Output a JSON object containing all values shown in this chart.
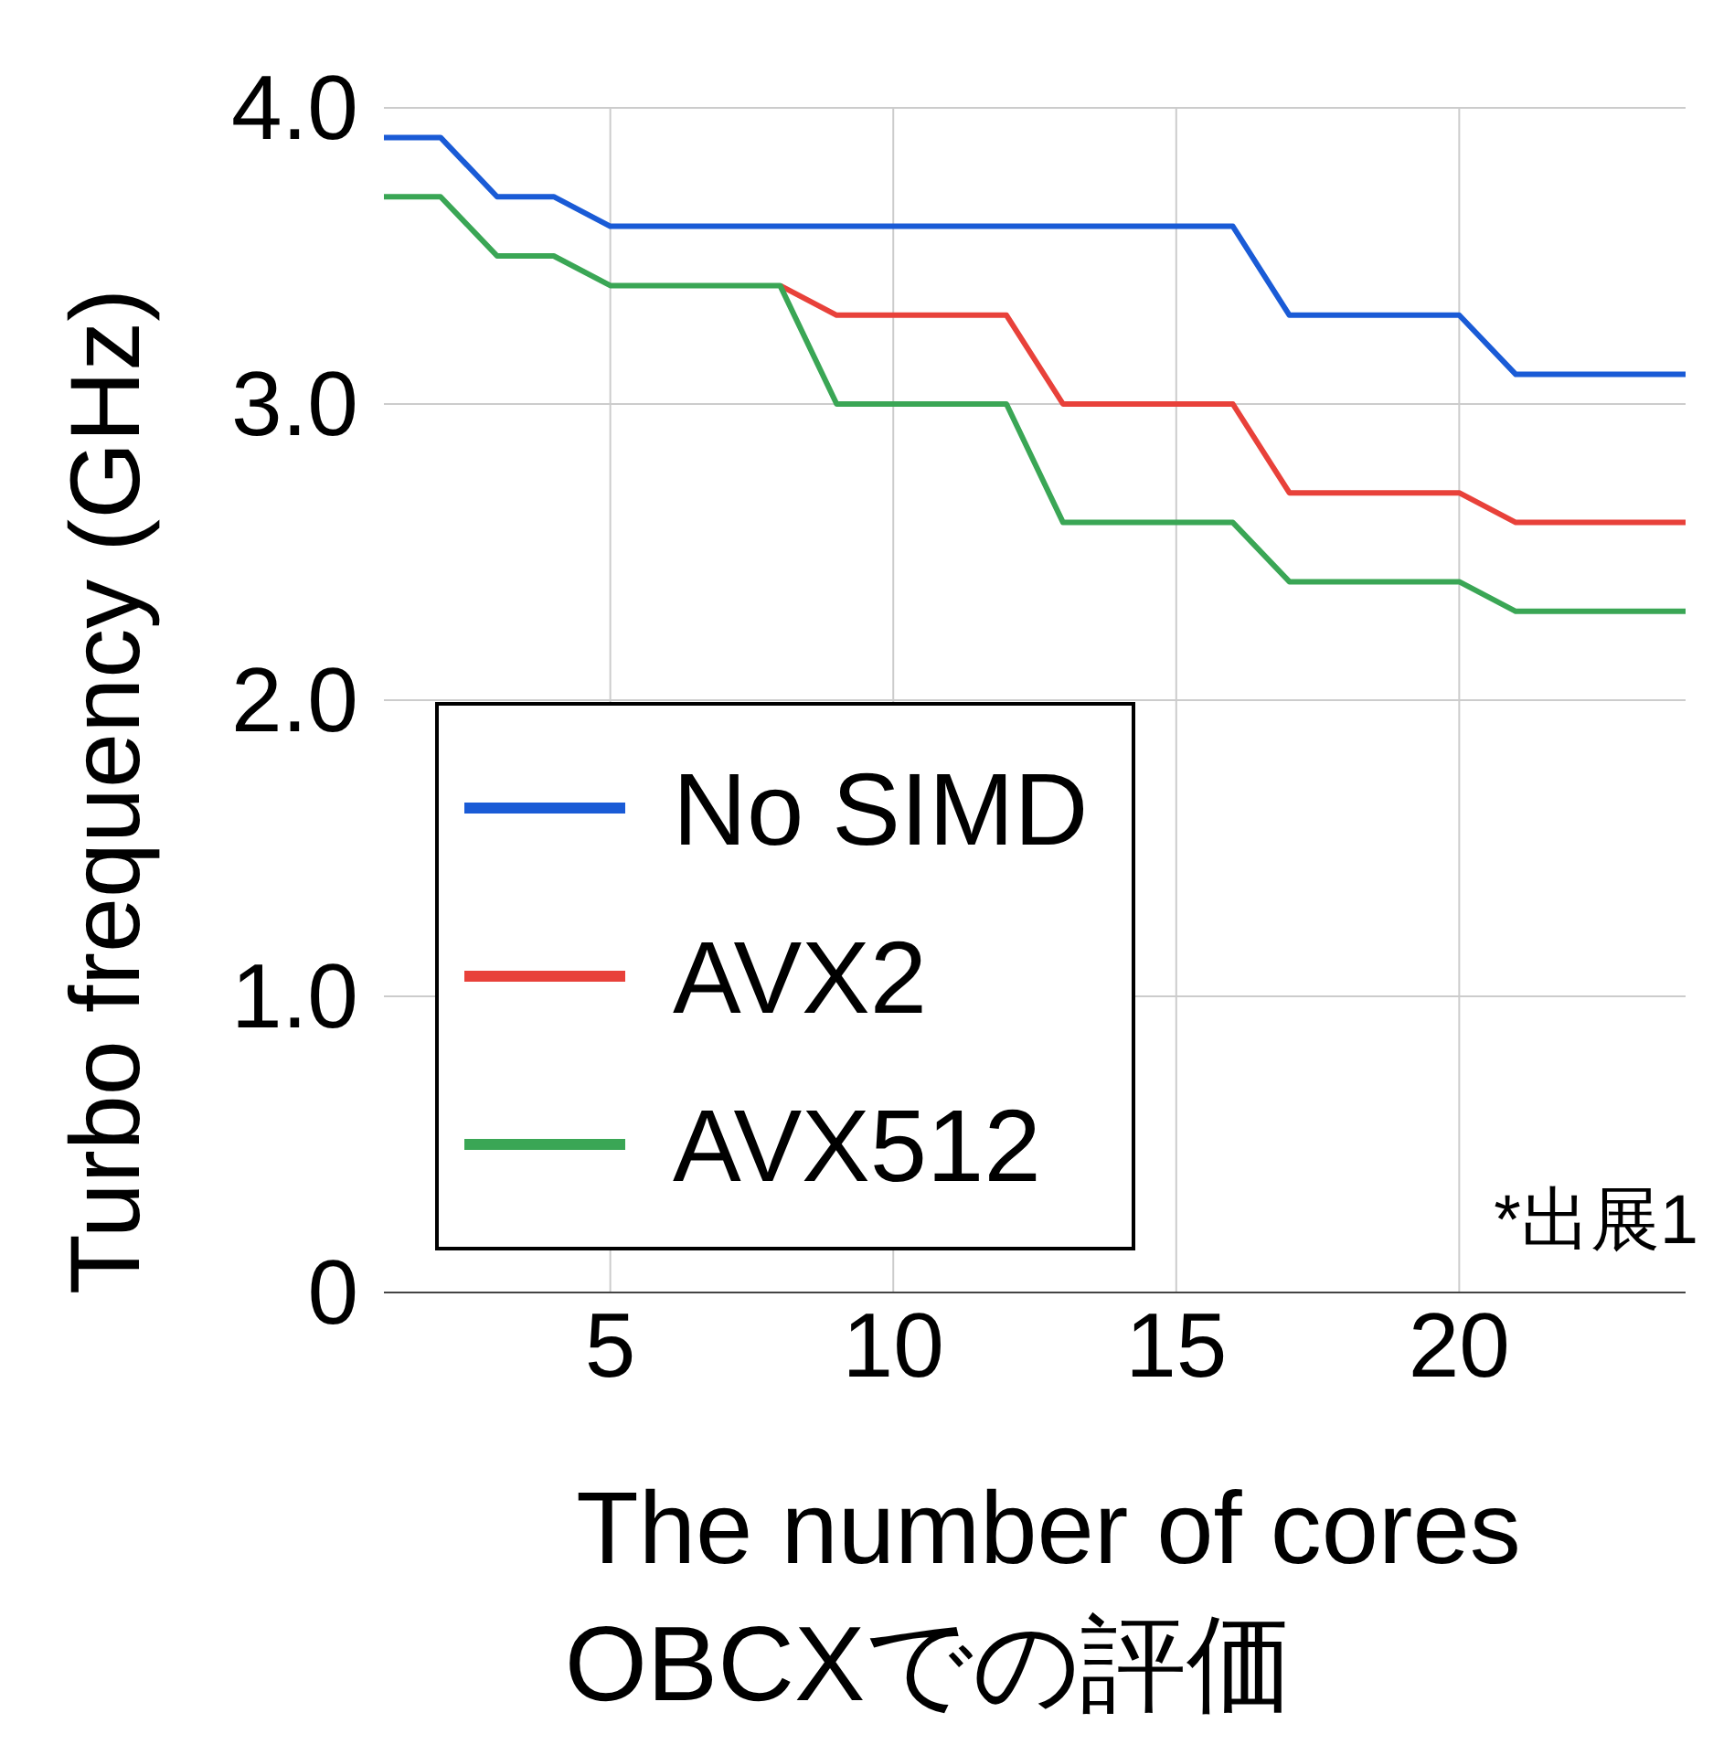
{
  "chart_data": {
    "type": "line",
    "title": "OBCXでの評価",
    "xlabel": "The number of cores",
    "ylabel": "Turbo frequency (GHz)",
    "x": [
      1,
      2,
      3,
      4,
      5,
      6,
      7,
      8,
      9,
      10,
      11,
      12,
      13,
      14,
      15,
      16,
      17,
      18,
      19,
      20,
      21,
      22,
      23,
      24
    ],
    "series": [
      {
        "name": "No SIMD",
        "color": "#1a5bd6",
        "values": [
          3.9,
          3.9,
          3.7,
          3.7,
          3.6,
          3.6,
          3.6,
          3.6,
          3.6,
          3.6,
          3.6,
          3.6,
          3.6,
          3.6,
          3.6,
          3.6,
          3.3,
          3.3,
          3.3,
          3.3,
          3.1,
          3.1,
          3.1,
          3.1
        ]
      },
      {
        "name": "AVX2",
        "color": "#e8413a",
        "values": [
          null,
          null,
          null,
          null,
          null,
          null,
          null,
          3.4,
          3.3,
          3.3,
          3.3,
          3.3,
          3.0,
          3.0,
          3.0,
          3.0,
          2.7,
          2.7,
          2.7,
          2.7,
          2.6,
          2.6,
          2.6,
          2.6
        ]
      },
      {
        "name": "AVX512",
        "color": "#3aa655",
        "values": [
          3.7,
          3.7,
          3.5,
          3.5,
          3.4,
          3.4,
          3.4,
          3.4,
          3.0,
          3.0,
          3.0,
          3.0,
          2.6,
          2.6,
          2.6,
          2.6,
          2.4,
          2.4,
          2.4,
          2.4,
          2.3,
          2.3,
          2.3,
          2.3
        ]
      }
    ],
    "xlim": [
      1,
      24
    ],
    "xticks": [
      5,
      10,
      15,
      20
    ],
    "ylim": [
      0,
      4
    ],
    "yticks": [
      0,
      {
        "value": 1,
        "label": "1.0"
      },
      {
        "value": 2,
        "label": "2.0"
      },
      {
        "value": 3,
        "label": "3.0"
      },
      {
        "value": 4,
        "label": "4.0"
      }
    ],
    "grid": true,
    "legend": "bottom left",
    "marker": "none",
    "line_style": "solid",
    "annotations": [
      "*出展1"
    ]
  }
}
